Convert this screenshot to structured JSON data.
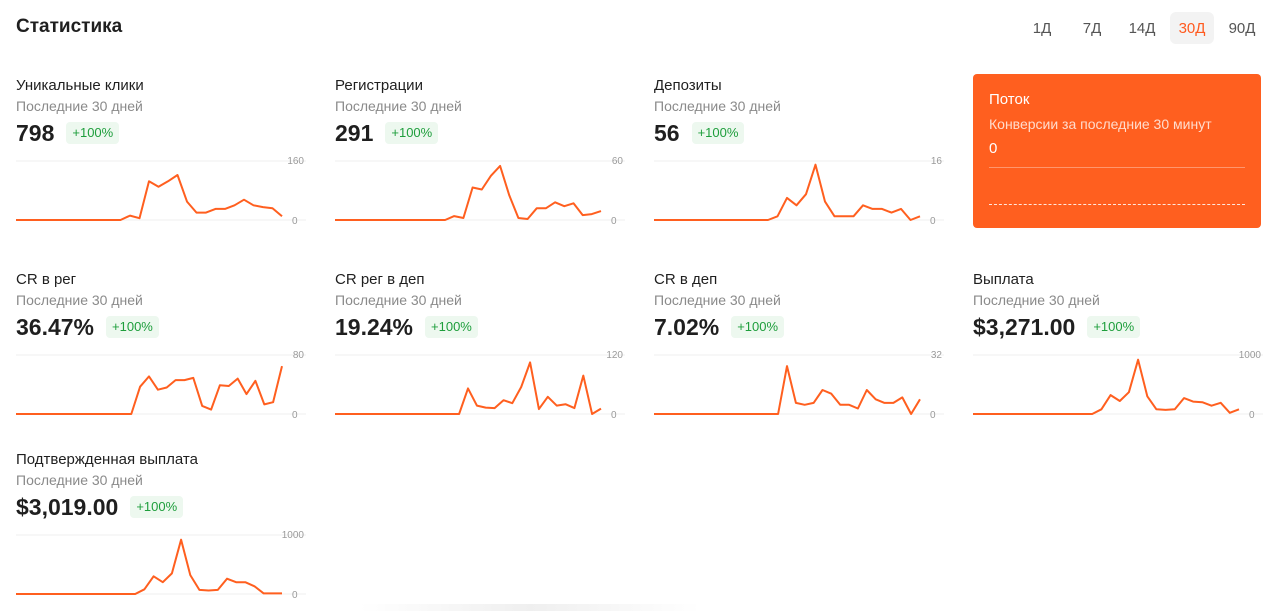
{
  "header": {
    "title": "Статистика",
    "periods": [
      "1Д",
      "7Д",
      "14Д",
      "30Д",
      "90Д"
    ],
    "active_period": "30Д"
  },
  "colors": {
    "accent": "#ff5f1f",
    "badge_green": "#1e9e3c",
    "badge_bg": "#edf8ef"
  },
  "cards": [
    {
      "title": "Уникальные клики",
      "subtitle": "Последние 30 дней",
      "value": "798",
      "change": "+100%",
      "ymax_label": "160",
      "ymin_label": "0",
      "ymax": 160,
      "points": [
        0,
        0,
        0,
        0,
        0,
        0,
        0,
        0,
        0,
        0,
        0,
        0,
        12,
        5,
        105,
        90,
        105,
        122,
        50,
        20,
        20,
        30,
        30,
        40,
        55,
        40,
        35,
        32,
        10
      ]
    },
    {
      "title": "Регистрации",
      "subtitle": "Последние 30 дней",
      "value": "291",
      "change": "+100%",
      "ymax_label": "60",
      "ymin_label": "0",
      "ymax": 60,
      "points": [
        0,
        0,
        0,
        0,
        0,
        0,
        0,
        0,
        0,
        0,
        0,
        0,
        0,
        4,
        2,
        33,
        31,
        45,
        55,
        25,
        2,
        1,
        12,
        12,
        18,
        14,
        17,
        5,
        6,
        9
      ]
    },
    {
      "title": "Депозиты",
      "subtitle": "Последние 30 дней",
      "value": "56",
      "change": "+100%",
      "ymax_label": "16",
      "ymin_label": "0",
      "ymax": 16,
      "points": [
        0,
        0,
        0,
        0,
        0,
        0,
        0,
        0,
        0,
        0,
        0,
        0,
        0,
        1,
        6,
        4,
        7,
        15,
        5,
        1,
        1,
        1,
        4,
        3,
        3,
        2,
        3,
        0,
        1
      ]
    },
    {
      "title": "CR в рег",
      "subtitle": "Последние 30 дней",
      "value": "36.47%",
      "change": "+100%",
      "ymax_label": "80",
      "ymin_label": "0",
      "ymax": 80,
      "points": [
        0,
        0,
        0,
        0,
        0,
        0,
        0,
        0,
        0,
        0,
        0,
        0,
        0,
        0,
        37,
        51,
        33,
        36,
        46,
        46,
        49,
        11,
        6,
        39,
        38,
        48,
        27,
        45,
        13,
        16,
        65
      ]
    },
    {
      "title": "CR рег в деп",
      "subtitle": "Последние 30 дней",
      "value": "19.24%",
      "change": "+100%",
      "ymax_label": "120",
      "ymin_label": "0",
      "ymax": 120,
      "points": [
        0,
        0,
        0,
        0,
        0,
        0,
        0,
        0,
        0,
        0,
        0,
        0,
        0,
        0,
        0,
        52,
        17,
        13,
        12,
        28,
        22,
        55,
        105,
        10,
        35,
        17,
        20,
        12,
        78,
        0,
        11
      ]
    },
    {
      "title": "CR в деп",
      "subtitle": "Последние 30 дней",
      "value": "7.02%",
      "change": "+100%",
      "ymax_label": "32",
      "ymin_label": "0",
      "ymax": 32,
      "points": [
        0,
        0,
        0,
        0,
        0,
        0,
        0,
        0,
        0,
        0,
        0,
        0,
        0,
        0,
        0,
        26,
        6,
        5,
        6,
        13,
        11,
        5,
        5,
        3,
        13,
        8,
        6,
        6,
        9,
        0,
        8
      ]
    },
    {
      "title": "Выплата",
      "subtitle": "Последние 30 дней",
      "value": "$3,271.00",
      "change": "+100%",
      "ymax_label": "1000",
      "ymin_label": "0",
      "ymax": 1000,
      "points": [
        0,
        0,
        0,
        0,
        0,
        0,
        0,
        0,
        0,
        0,
        0,
        0,
        0,
        0,
        80,
        320,
        220,
        370,
        920,
        300,
        80,
        70,
        80,
        270,
        210,
        200,
        140,
        190,
        20,
        80
      ]
    },
    {
      "title": "Подтвержденная выплата",
      "subtitle": "Последние 30 дней",
      "value": "$3,019.00",
      "change": "+100%",
      "ymax_label": "1000",
      "ymin_label": "0",
      "ymax": 1000,
      "points": [
        0,
        0,
        0,
        0,
        0,
        0,
        0,
        0,
        0,
        0,
        0,
        0,
        0,
        0,
        80,
        300,
        200,
        350,
        920,
        320,
        70,
        60,
        70,
        260,
        200,
        200,
        130,
        10,
        10,
        10
      ]
    }
  ],
  "flow": {
    "title": "Поток",
    "subtitle": "Конверсии за последние 30 минут",
    "value": "0"
  }
}
